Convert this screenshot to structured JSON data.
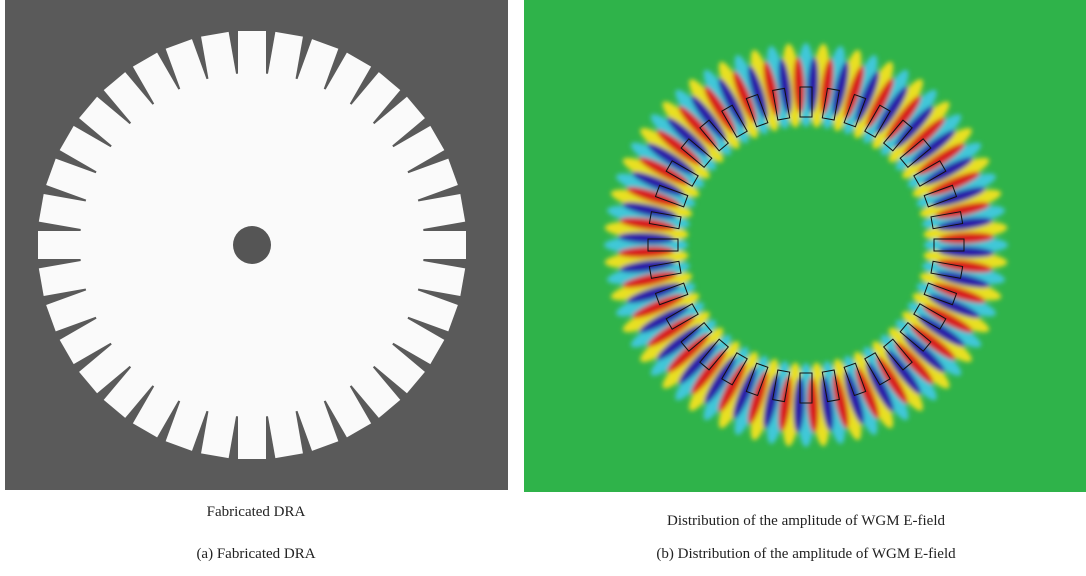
{
  "panels": [
    {
      "title": "Fabricated DRA",
      "caption": "(a) Fabricated DRA"
    },
    {
      "title": "Distribution of the amplitude of WGM E-field",
      "caption": "(b) Distribution of the amplitude of WGM E-field"
    }
  ]
}
